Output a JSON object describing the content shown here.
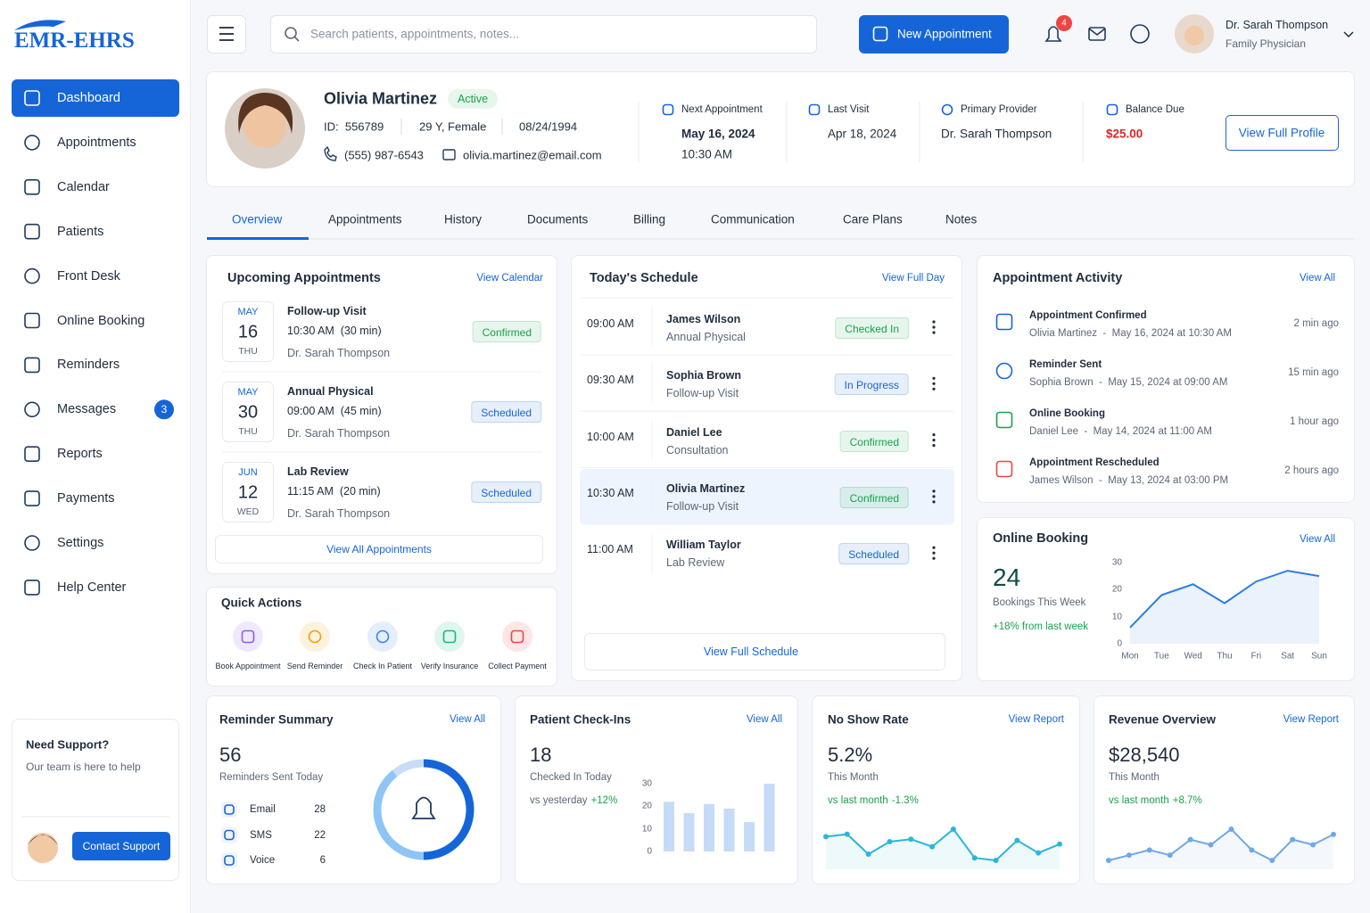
{
  "brand": "EMR-EHRS",
  "sidebar": {
    "nav": [
      {
        "label": "Dashboard",
        "active": true
      },
      {
        "label": "Appointments"
      },
      {
        "label": "Calendar"
      },
      {
        "label": "Patients"
      },
      {
        "label": "Front Desk"
      },
      {
        "label": "Online Booking"
      },
      {
        "label": "Reminders"
      },
      {
        "label": "Messages",
        "badge": 3
      },
      {
        "label": "Reports"
      },
      {
        "label": "Payments"
      },
      {
        "label": "Settings"
      },
      {
        "label": "Help Center"
      }
    ],
    "support": {
      "title": "Need Support?",
      "text": "Our team is here to help",
      "button": "Contact Support"
    }
  },
  "header": {
    "search": "Search patients, appointments, notes...",
    "new_appointment": "New Appointment",
    "notifications": 4,
    "user": {
      "name": "Dr. Sarah Thompson",
      "role": "Family Physician"
    }
  },
  "patient": {
    "name": "Olivia Martinez",
    "status": "Active",
    "id": "ID:  556789",
    "age_sex": "29 Y, Female",
    "dob": "08/24/1994",
    "phone": "(555) 987-6543",
    "email": "olivia.martinez@email.com",
    "stats": [
      {
        "label": "Next Appointment",
        "value": "May 16, 2024",
        "sub": "10:30 AM"
      },
      {
        "label": "Last Visit",
        "value": "Apr 18, 2024"
      },
      {
        "label": "Primary Provider",
        "value": "Dr. Sarah Thompson"
      },
      {
        "label": "Balance Due",
        "value": "$25.00",
        "color": "#dc2626"
      }
    ],
    "button": "View Full Profile"
  },
  "tabs": {
    "items": [
      "Overview",
      "Appointments",
      "History",
      "Documents",
      "Billing",
      "Communication",
      "Care Plans",
      "Notes"
    ],
    "active": 0
  },
  "upcoming": {
    "title": "Upcoming Appointments",
    "link": "View Calendar",
    "footer": "View All Appointments",
    "items": [
      {
        "month": "MAY",
        "day": "16",
        "weekday": "THU",
        "title": "Follow-up Visit",
        "time": "10:30 AM  (30 min)",
        "provider": "Dr. Sarah Thompson",
        "status": "Confirmed",
        "color": "#16a34a"
      },
      {
        "month": "MAY",
        "day": "30",
        "weekday": "THU",
        "title": "Annual Physical",
        "time": "09:00 AM  (45 min)",
        "provider": "Dr. Sarah Thompson",
        "status": "Scheduled",
        "color": "#1565d8"
      },
      {
        "month": "JUN",
        "day": "12",
        "weekday": "WED",
        "title": "Lab Review",
        "time": "11:15 AM  (20 min)",
        "provider": "Dr. Sarah Thompson",
        "status": "Scheduled",
        "color": "#1565d8"
      }
    ]
  },
  "quick_actions": {
    "title": "Quick Actions",
    "items": [
      {
        "label": "Book Appointment",
        "color": "#8b5cf6"
      },
      {
        "label": "Send Reminder",
        "color": "#f59e0b"
      },
      {
        "label": "Check In Patient",
        "color": "#3b82f6"
      },
      {
        "label": "Verify Insurance",
        "color": "#10b981"
      },
      {
        "label": "Collect Payment",
        "color": "#ef4444"
      }
    ]
  },
  "schedule": {
    "title": "Today's Schedule",
    "link": "View Full Day",
    "footer": "View Full Schedule",
    "highlight": 3,
    "items": [
      {
        "time": "09:00 AM",
        "name": "James Wilson",
        "visit": "Annual Physical",
        "status": "Checked In",
        "color": "#16a34a"
      },
      {
        "time": "09:30 AM",
        "name": "Sophia Brown",
        "visit": "Follow-up Visit",
        "status": "In Progress",
        "color": "#1565d8"
      },
      {
        "time": "10:00 AM",
        "name": "Daniel Lee",
        "visit": "Consultation",
        "status": "Confirmed",
        "color": "#16a34a"
      },
      {
        "time": "10:30 AM",
        "name": "Olivia Martinez",
        "visit": "Follow-up Visit",
        "status": "Confirmed",
        "color": "#16a34a"
      },
      {
        "time": "11:00 AM",
        "name": "William Taylor",
        "visit": "Lab Review",
        "status": "Scheduled",
        "color": "#1565d8"
      }
    ]
  },
  "activity": {
    "title": "Appointment Activity",
    "link": "View All",
    "items": [
      {
        "title": "Appointment Confirmed",
        "detail": "Olivia Martinez  -  May 16, 2024 at 10:30 AM",
        "ago": "2 min ago",
        "color": "#1565d8"
      },
      {
        "title": "Reminder Sent",
        "detail": "Sophia Brown  -  May 15, 2024 at 09:00 AM",
        "ago": "15 min ago",
        "color": "#1565d8"
      },
      {
        "title": "Online Booking",
        "detail": "Daniel Lee  -  May 14, 2024 at 11:00 AM",
        "ago": "1 hour ago",
        "color": "#16a34a"
      },
      {
        "title": "Appointment Rescheduled",
        "detail": "James Wilson  -  May 13, 2024 at 03:00 PM",
        "ago": "2 hours ago",
        "color": "#ef4444"
      }
    ]
  },
  "online_booking": {
    "title": "Online Booking",
    "link": "View All",
    "value": 24,
    "label": "Bookings This Week",
    "change": "+18% from last week",
    "chart_data": {
      "type": "line",
      "categories": [
        "Mon",
        "Tue",
        "Wed",
        "Thu",
        "Fri",
        "Sat",
        "Sun"
      ],
      "values": [
        6,
        18,
        22,
        15,
        23,
        27,
        25
      ],
      "color": "#2f7de1",
      "ylim": [
        0,
        30
      ],
      "yticks": [
        0,
        10,
        20,
        30
      ]
    }
  },
  "reminder_summary": {
    "title": "Reminder Summary",
    "link": "View All",
    "value": 56,
    "label": "Reminders Sent Today",
    "chart_data": {
      "type": "donut",
      "series": [
        {
          "name": "Email",
          "values": [
            28
          ],
          "color": "#1565d8"
        },
        {
          "name": "SMS",
          "values": [
            22
          ],
          "color": "#8ec5f4"
        },
        {
          "name": "Voice",
          "values": [
            6
          ],
          "color": "#c9dcf6"
        }
      ]
    }
  },
  "checkins": {
    "title": "Patient Check-Ins",
    "link": "View All",
    "value": 18,
    "label": "Checked In Today",
    "change_label": "vs yesterday",
    "change": "+12%",
    "chart_data": {
      "type": "bar",
      "values": [
        22,
        17,
        21,
        19,
        13,
        30
      ],
      "color": "#c6dbf8",
      "ylim": [
        0,
        30
      ],
      "yticks": [
        0,
        10,
        20,
        30
      ]
    }
  },
  "no_show": {
    "title": "No Show Rate",
    "link": "View Report",
    "value": "5.2%",
    "label": "This Month",
    "change_label": "vs last month",
    "change": "-1.3%",
    "chart_data": {
      "type": "sparkline",
      "values": [
        6,
        6.2,
        4.6,
        5.6,
        5.8,
        5.2,
        6.6,
        4.3,
        4.1,
        5.7,
        4.7,
        5.4
      ],
      "color": "#2bb6d9"
    }
  },
  "revenue": {
    "title": "Revenue Overview",
    "link": "View Report",
    "value": "$28,540",
    "label": "This Month",
    "change_label": "vs last month",
    "change": "+8.7%",
    "chart_data": {
      "type": "sparkline",
      "values": [
        2,
        3,
        4,
        3,
        6,
        5,
        8,
        4,
        2,
        6,
        5,
        7
      ],
      "color": "#6ea8e8"
    }
  }
}
